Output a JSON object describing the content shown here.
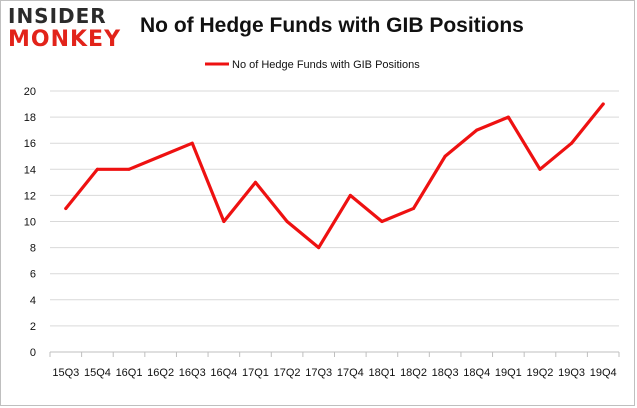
{
  "logo": {
    "line1": "INSIDER",
    "line2": "MONKEY"
  },
  "colors": {
    "series": "#ee1111",
    "grid": "#d9d9d9",
    "axis": "#bfbfbf"
  },
  "chart_data": {
    "type": "line",
    "title": "No of Hedge Funds with GIB Positions",
    "categories": [
      "15Q3",
      "15Q4",
      "16Q1",
      "16Q2",
      "16Q3",
      "16Q4",
      "17Q1",
      "17Q2",
      "17Q3",
      "17Q4",
      "18Q1",
      "18Q2",
      "18Q3",
      "18Q4",
      "19Q1",
      "19Q2",
      "19Q3",
      "19Q4"
    ],
    "series": [
      {
        "name": "No of Hedge Funds with GIB Positions",
        "values": [
          11,
          14,
          14,
          15,
          16,
          10,
          13,
          10,
          8,
          12,
          10,
          11,
          15,
          17,
          18,
          14,
          16,
          19
        ]
      }
    ],
    "ylim": [
      0,
      20
    ],
    "yticks": [
      0,
      2,
      4,
      6,
      8,
      10,
      12,
      14,
      16,
      18,
      20
    ],
    "grid": true,
    "legend": "top-center"
  }
}
